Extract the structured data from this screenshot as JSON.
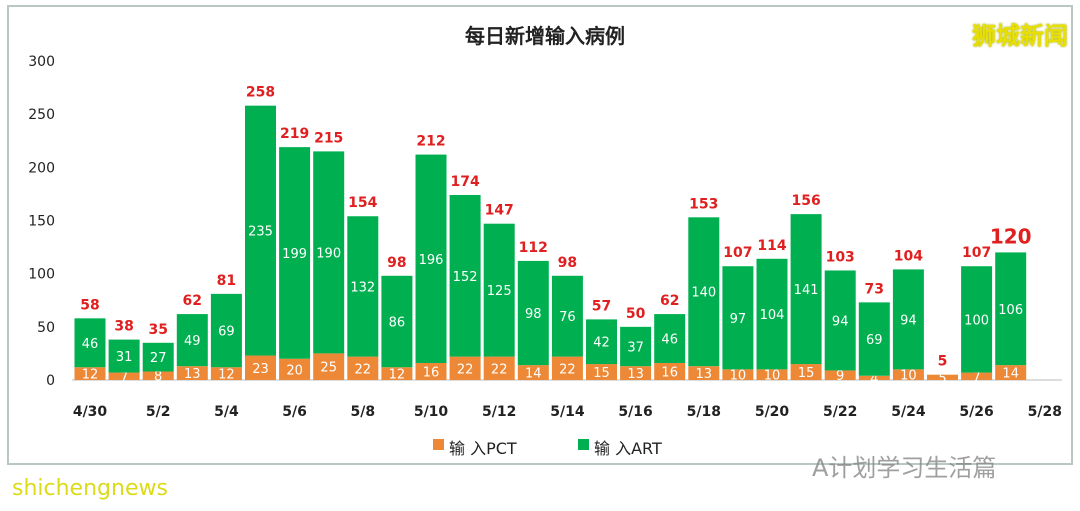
{
  "chart_data": {
    "type": "bar",
    "stacked": true,
    "title": "每日新增输入病例",
    "categories": [
      "4/30",
      "5/1",
      "5/2",
      "5/3",
      "5/4",
      "5/5",
      "5/6",
      "5/7",
      "5/8",
      "5/9",
      "5/10",
      "5/11",
      "5/12",
      "5/13",
      "5/14",
      "5/15",
      "5/16",
      "5/17",
      "5/18",
      "5/19",
      "5/20",
      "5/21",
      "5/22",
      "5/23",
      "5/24",
      "5/25",
      "5/26",
      "5/27",
      "5/28"
    ],
    "tick_labels": [
      "4/30",
      "5/2",
      "5/4",
      "5/6",
      "5/8",
      "5/10",
      "5/12",
      "5/14",
      "5/16",
      "5/18",
      "5/20",
      "5/22",
      "5/24",
      "5/26",
      "5/28"
    ],
    "series": [
      {
        "name": "输 入PCT",
        "color": "#ed8936",
        "values": [
          12,
          7,
          8,
          13,
          12,
          23,
          20,
          25,
          22,
          12,
          16,
          22,
          22,
          14,
          22,
          15,
          13,
          16,
          13,
          10,
          10,
          15,
          9,
          4,
          10,
          5,
          7,
          14,
          null
        ]
      },
      {
        "name": "输 入ART",
        "color": "#00b050",
        "values": [
          46,
          31,
          27,
          49,
          69,
          235,
          199,
          190,
          132,
          86,
          196,
          152,
          125,
          98,
          76,
          42,
          37,
          46,
          140,
          97,
          104,
          141,
          94,
          69,
          94,
          0,
          100,
          106,
          null
        ]
      }
    ],
    "totals": [
      58,
      38,
      35,
      62,
      81,
      258,
      219,
      215,
      154,
      98,
      212,
      174,
      147,
      112,
      98,
      57,
      50,
      62,
      153,
      107,
      114,
      156,
      103,
      73,
      104,
      5,
      107,
      120,
      null
    ],
    "total_label_color": "#e02020",
    "ylim": [
      0,
      300
    ],
    "yticks": [
      0,
      50,
      100,
      150,
      200,
      250,
      300
    ],
    "grid": false,
    "legend_position": "bottom"
  },
  "watermarks": {
    "brand": "狮城新闻",
    "site": "shichengnews",
    "wechat": "A计划学习生活篇"
  }
}
